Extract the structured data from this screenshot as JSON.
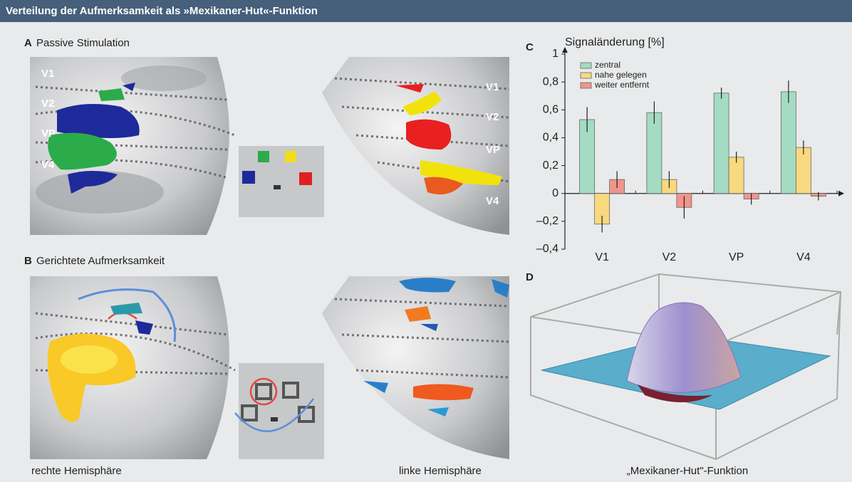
{
  "header": {
    "title": "Verteilung der Aufmerksamkeit als »Mexikaner-Hut«-Funktion"
  },
  "panel_a": {
    "letter": "A",
    "title": "Passive Stimulation",
    "left_labels": [
      "V1",
      "V2",
      "VP",
      "V4"
    ],
    "right_labels": [
      "V1",
      "V2",
      "VP",
      "V4"
    ]
  },
  "panel_b": {
    "letter": "B",
    "title": "Gerichtete Aufmerksamkeit"
  },
  "captions": {
    "left": "rechte Hemisphäre",
    "right": "linke Hemisphäre"
  },
  "panel_c": {
    "letter": "C"
  },
  "panel_d": {
    "letter": "D",
    "caption": "„Mexikaner-Hut\"-Funktion"
  },
  "chart_data": {
    "type": "bar",
    "y_label": "Signaländerung [%]",
    "categories": [
      "V1",
      "V2",
      "VP",
      "V4"
    ],
    "series": [
      {
        "name": "zentral",
        "color": "#a3dcc2",
        "values": [
          0.53,
          0.58,
          0.72,
          0.73
        ],
        "errors": [
          0.09,
          0.08,
          0.04,
          0.08
        ]
      },
      {
        "name": "nahe gelegen",
        "color": "#f8d97f",
        "values": [
          -0.22,
          0.1,
          0.26,
          0.33
        ],
        "errors": [
          0.06,
          0.06,
          0.04,
          0.05
        ]
      },
      {
        "name": "weiter entfernt",
        "color": "#f0958c",
        "values": [
          0.1,
          -0.1,
          -0.04,
          -0.02
        ],
        "errors": [
          0.06,
          0.08,
          0.04,
          0.03
        ]
      }
    ],
    "ylim": [
      -0.4,
      1
    ],
    "yticks": [
      {
        "value": -0.4,
        "label": "–0,4"
      },
      {
        "value": -0.2,
        "label": "–0,2"
      },
      0,
      {
        "value": 0.2,
        "label": "0,2"
      },
      {
        "value": 0.4,
        "label": "0,4"
      },
      {
        "value": 0.6,
        "label": "0,6"
      },
      {
        "value": 0.8,
        "label": "0,8"
      },
      1
    ],
    "grid": false
  }
}
